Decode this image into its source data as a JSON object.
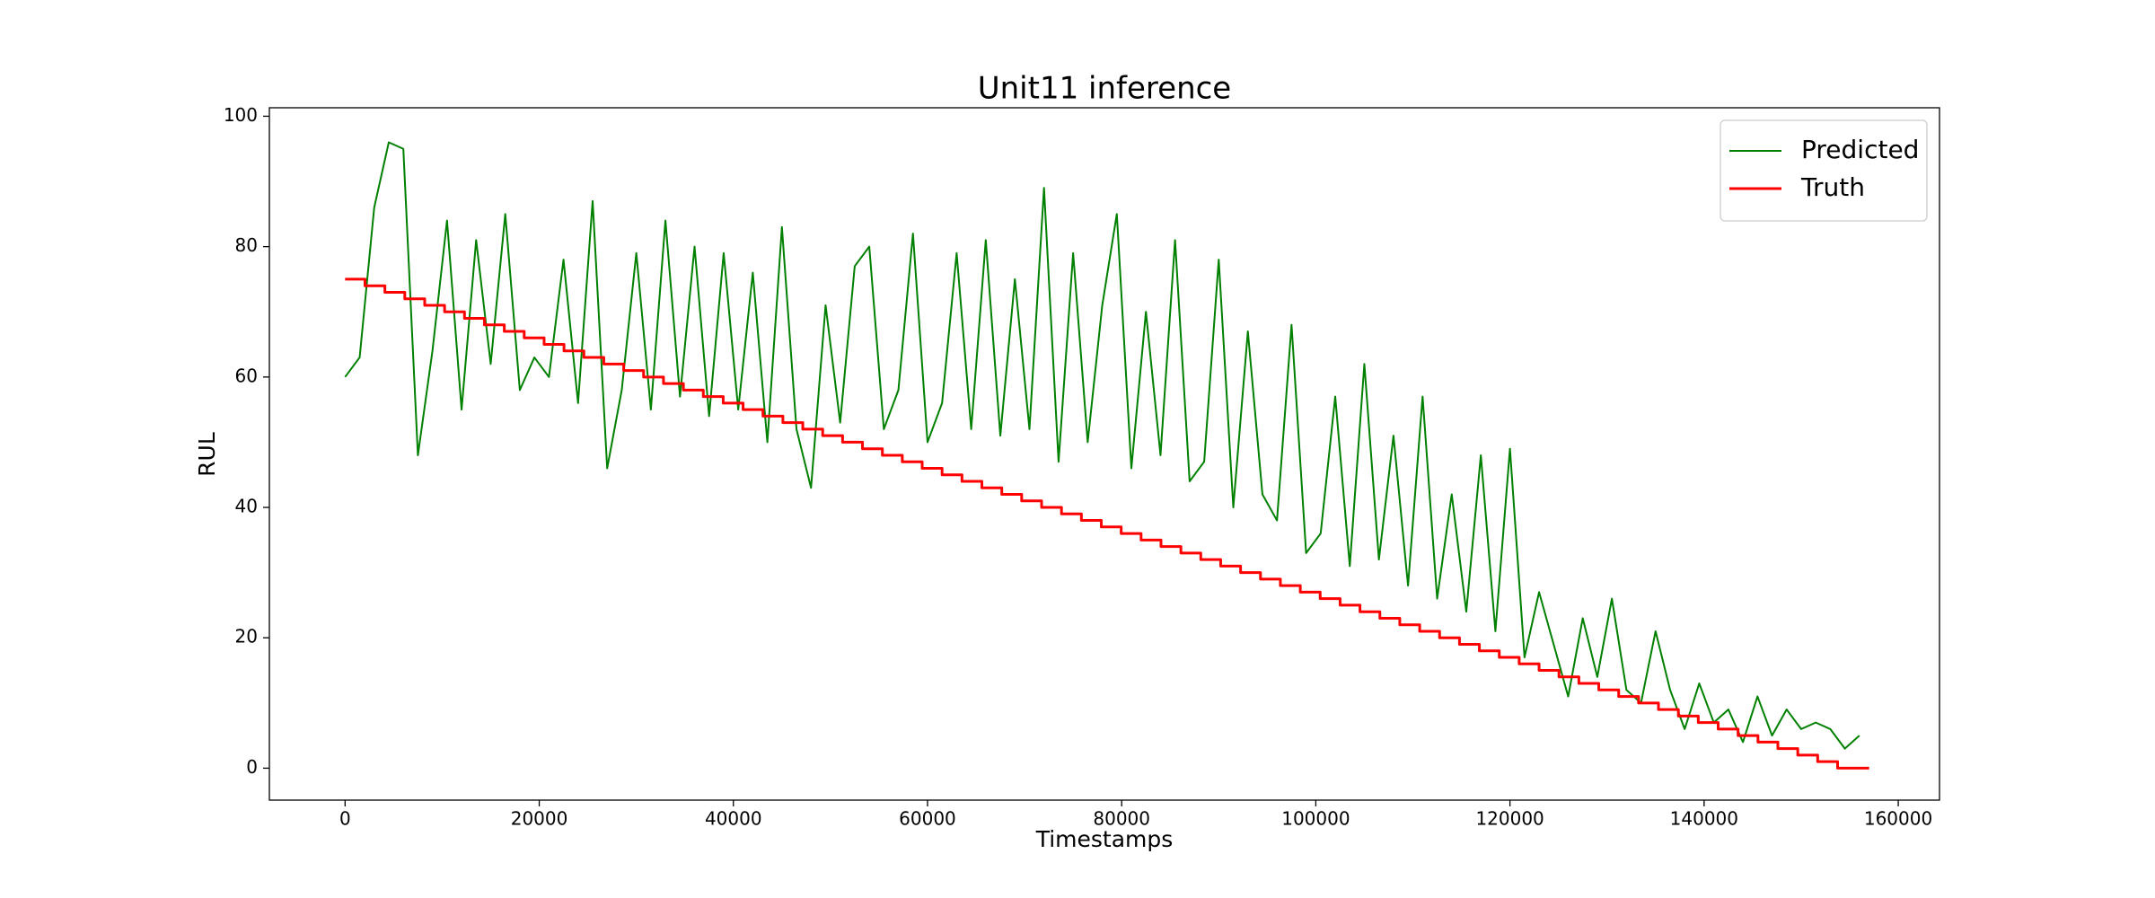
{
  "chart_data": {
    "type": "line",
    "title": "Unit11 inference",
    "x_label": "Timestamps",
    "y_label": "RUL",
    "xlim": [
      -7800,
      164250
    ],
    "ylim": [
      -4.9,
      101.3
    ],
    "xticks": [
      0,
      20000,
      40000,
      60000,
      80000,
      100000,
      120000,
      140000,
      160000
    ],
    "yticks": [
      0,
      20,
      40,
      60,
      80,
      100
    ],
    "grid": false,
    "legend": "upper right",
    "series": [
      {
        "name": "Predicted",
        "color": "#008000",
        "drawstyle": "default",
        "x": [
          0,
          1500,
          3000,
          4500,
          6000,
          7500,
          9000,
          10500,
          12000,
          13500,
          15000,
          16500,
          18000,
          19500,
          21000,
          22500,
          24000,
          25500,
          27000,
          28500,
          30000,
          31500,
          33000,
          34500,
          36000,
          37500,
          39000,
          40500,
          42000,
          43500,
          45000,
          46500,
          48000,
          49500,
          51000,
          52500,
          54000,
          55500,
          57000,
          58500,
          60000,
          61500,
          63000,
          64500,
          66000,
          67500,
          69000,
          70500,
          72000,
          73500,
          75000,
          76500,
          78000,
          79500,
          81000,
          82500,
          84000,
          85500,
          87000,
          88500,
          90000,
          91500,
          93000,
          94500,
          96000,
          97500,
          99000,
          100500,
          102000,
          103500,
          105000,
          106500,
          108000,
          109500,
          111000,
          112500,
          114000,
          115500,
          117000,
          118500,
          120000,
          121500,
          123000,
          124500,
          126000,
          127500,
          129000,
          130500,
          132000,
          133500,
          135000,
          136500,
          138000,
          139500,
          141000,
          142500,
          144000,
          145500,
          147000,
          148500,
          150000,
          151500,
          153000,
          154500,
          156000
        ],
        "values": [
          60,
          63,
          86,
          96,
          95,
          48,
          64,
          84,
          55,
          81,
          62,
          85,
          58,
          63,
          60,
          78,
          56,
          87,
          46,
          58,
          79,
          55,
          84,
          57,
          80,
          54,
          79,
          55,
          76,
          50,
          83,
          52,
          43,
          71,
          53,
          77,
          80,
          52,
          58,
          82,
          50,
          56,
          79,
          52,
          81,
          51,
          75,
          52,
          89,
          47,
          79,
          50,
          71,
          85,
          46,
          70,
          48,
          81,
          44,
          47,
          78,
          40,
          67,
          42,
          38,
          68,
          33,
          36,
          57,
          31,
          62,
          32,
          51,
          28,
          57,
          26,
          42,
          24,
          48,
          21,
          49,
          17,
          27,
          19,
          11,
          23,
          14,
          26,
          12,
          10,
          21,
          12,
          6,
          13,
          7,
          9,
          4,
          11,
          5,
          9,
          6,
          7,
          6,
          3,
          5
        ]
      },
      {
        "name": "Truth",
        "color": "#ff0000",
        "drawstyle": "steps-post",
        "x": [
          0,
          2050,
          4100,
          6150,
          8200,
          10250,
          12300,
          14350,
          16400,
          18450,
          20500,
          22550,
          24600,
          26650,
          28700,
          30750,
          32800,
          34850,
          36900,
          38950,
          41000,
          43050,
          45100,
          47150,
          49200,
          51250,
          53300,
          55350,
          57400,
          59450,
          61500,
          63550,
          65600,
          67650,
          69700,
          71750,
          73800,
          75850,
          77900,
          79950,
          82000,
          84050,
          86100,
          88150,
          90200,
          92250,
          94300,
          96350,
          98400,
          100450,
          102500,
          104550,
          106600,
          108650,
          110700,
          112750,
          114800,
          116850,
          118900,
          120950,
          123000,
          125050,
          127100,
          129150,
          131200,
          133250,
          135300,
          137350,
          139400,
          141450,
          143500,
          145550,
          147600,
          149650,
          151700,
          153750,
          157000
        ],
        "values": [
          75,
          74,
          73,
          72,
          71,
          70,
          69,
          68,
          67,
          66,
          65,
          64,
          63,
          62,
          61,
          60,
          59,
          58,
          57,
          56,
          55,
          54,
          53,
          52,
          51,
          50,
          49,
          48,
          47,
          46,
          45,
          44,
          43,
          42,
          41,
          40,
          39,
          38,
          37,
          36,
          35,
          34,
          33,
          32,
          31,
          30,
          29,
          28,
          27,
          26,
          25,
          24,
          23,
          22,
          21,
          20,
          19,
          18,
          17,
          16,
          15,
          14,
          13,
          12,
          11,
          10,
          9,
          8,
          7,
          6,
          5,
          4,
          3,
          2,
          1,
          0,
          0
        ]
      }
    ]
  }
}
